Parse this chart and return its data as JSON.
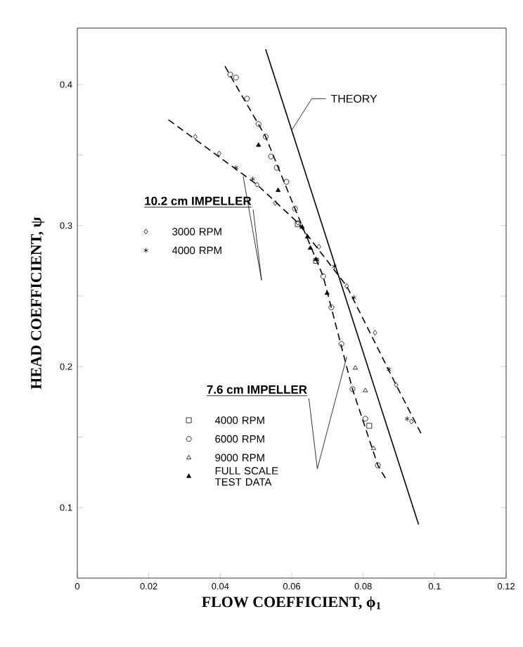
{
  "chart_data": {
    "type": "scatter",
    "xlabel": "FLOW COEFFICIENT, ϕ$_{1}$",
    "ylabel": "HEAD COEFFICIENT, ψ",
    "xlim": [
      0,
      0.12
    ],
    "ylim": [
      0.05,
      0.44
    ],
    "xticks": [
      0,
      0.02,
      0.04,
      0.06,
      0.08,
      0.1,
      0.12
    ],
    "yticks": [
      0.1,
      {
        "value": 0.15,
        "label": null
      },
      0.2,
      {
        "value": 0.25,
        "label": null
      },
      0.3,
      {
        "value": 0.35,
        "label": null
      },
      0.4
    ],
    "grid": false,
    "legend": "left",
    "annotations": [
      {
        "text": "THEORY",
        "x": 0.0601,
        "y": 0.368
      },
      {
        "text": "10.2 cm IMPELLER",
        "x": 0.0464,
        "y": 0.335
      },
      {
        "text": "7.6 cm IMPELLER",
        "x": 0.0754,
        "y": 0.207
      }
    ],
    "series": [
      {
        "type": "line",
        "color": "#000000",
        "line_style": "solid",
        "marker": "none",
        "x": [
          0.0527,
          0.0955
        ],
        "values": [
          0.425,
          0.088
        ]
      },
      {
        "type": "line",
        "color": "#000000",
        "line_style": "dashed",
        "marker": "none",
        "x": [
          0.0255,
          0.0503,
          0.0617,
          0.0754,
          0.0892,
          0.0963
        ],
        "values": [
          0.375,
          0.329,
          0.302,
          0.257,
          0.187,
          0.152
        ]
      },
      {
        "type": "line",
        "color": "#000000",
        "line_style": "dashed",
        "marker": "none",
        "x": [
          0.0413,
          0.0527,
          0.0609,
          0.0688,
          0.077,
          0.0841,
          0.0864
        ],
        "values": [
          0.413,
          0.363,
          0.312,
          0.264,
          0.184,
          0.13,
          0.12
        ]
      },
      {
        "name": "3000 RPM",
        "color": "#000000",
        "marker": "diamond",
        "x": [
          0.033,
          0.0397,
          0.0503,
          0.0554,
          0.0617,
          0.0676,
          0.0754,
          0.0833,
          0.0892,
          0.0935
        ],
        "values": [
          0.363,
          0.351,
          0.329,
          0.316,
          0.302,
          0.285,
          0.257,
          0.224,
          0.187,
          0.161
        ]
      },
      {
        "name": "4000 RPM",
        "color": "#000000",
        "marker": "cross",
        "x": [
          0.0444,
          0.0491,
          0.0719,
          0.0774,
          0.0872,
          0.0923
        ],
        "values": [
          0.341,
          0.333,
          0.271,
          0.249,
          0.198,
          0.163
        ]
      },
      {
        "name": "4000 RPM",
        "color": "#000000",
        "marker": "square",
        "x": [
          0.0617,
          0.0668,
          0.0817
        ],
        "values": [
          0.301,
          0.275,
          0.158
        ]
      },
      {
        "name": "6000 RPM",
        "color": "#000000",
        "marker": "circle",
        "x": [
          0.0428,
          0.0444,
          0.0475,
          0.0507,
          0.0527,
          0.0542,
          0.0558,
          0.0585,
          0.0609,
          0.0688,
          0.0711,
          0.0739,
          0.077,
          0.0806,
          0.0841
        ],
        "values": [
          0.407,
          0.405,
          0.39,
          0.372,
          0.363,
          0.349,
          0.341,
          0.331,
          0.312,
          0.264,
          0.242,
          0.216,
          0.184,
          0.163,
          0.13
        ]
      },
      {
        "name": "9000 RPM",
        "color": "#000000",
        "marker": "triangle",
        "x": [
          0.0778,
          0.0806,
          0.0829
        ],
        "values": [
          0.199,
          0.183,
          0.142
        ]
      },
      {
        "name": "FULL SCALE TEST DATA",
        "color": "#000000",
        "marker": "triangle_filled",
        "x": [
          0.0507,
          0.0562,
          0.0629,
          0.0644,
          0.0652,
          0.0668,
          0.0699
        ],
        "values": [
          0.357,
          0.325,
          0.299,
          0.292,
          0.284,
          0.276,
          0.252
        ]
      }
    ]
  }
}
